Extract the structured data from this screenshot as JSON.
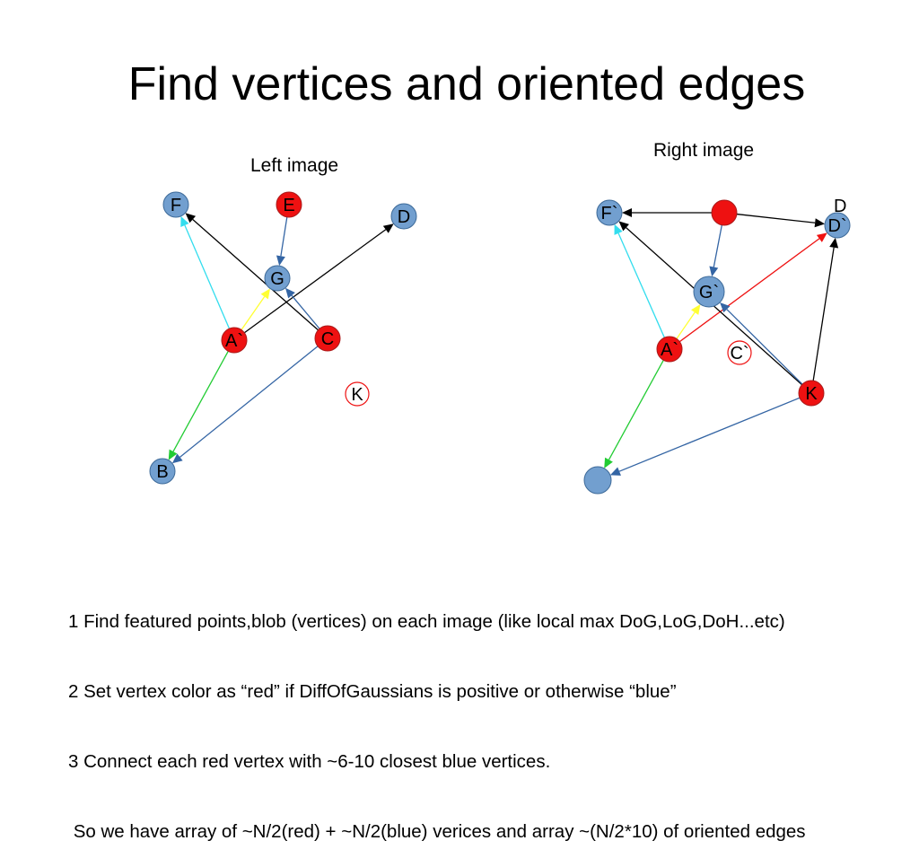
{
  "title": "Find vertices and oriented edges",
  "left_caption": "Left image",
  "right_caption": "Right image",
  "colors": {
    "red": "#ee1111",
    "blue": "#729fcf",
    "steel": "#3465a4",
    "cyan": "#33ddee",
    "yellow": "#ffff33",
    "green": "#22cc33",
    "black": "#000000"
  },
  "left_vertices": [
    {
      "id": "F",
      "label": "F",
      "color": "blue"
    },
    {
      "id": "E",
      "label": "E",
      "color": "red"
    },
    {
      "id": "D",
      "label": "D",
      "color": "blue"
    },
    {
      "id": "G",
      "label": "G",
      "color": "blue"
    },
    {
      "id": "A",
      "label": "A`",
      "color": "red"
    },
    {
      "id": "C",
      "label": "C",
      "color": "red"
    },
    {
      "id": "K",
      "label": "K",
      "color": "outline"
    },
    {
      "id": "B",
      "label": "B",
      "color": "blue"
    }
  ],
  "right_vertices": [
    {
      "id": "F",
      "label": "F`",
      "color": "blue"
    },
    {
      "id": "E",
      "label": "",
      "color": "red"
    },
    {
      "id": "D",
      "label": "D`",
      "color": "blue"
    },
    {
      "id": "G",
      "label": "G`",
      "color": "blue"
    },
    {
      "id": "A",
      "label": "A`",
      "color": "red"
    },
    {
      "id": "C",
      "label": "C`",
      "color": "outline"
    },
    {
      "id": "K",
      "label": "K",
      "color": "red"
    },
    {
      "id": "B",
      "label": "",
      "color": "blue"
    }
  ],
  "right_extra_label": "D",
  "left_edges": [
    {
      "from": "A",
      "to": "F",
      "color": "cyan"
    },
    {
      "from": "A",
      "to": "G",
      "color": "yellow"
    },
    {
      "from": "A",
      "to": "D",
      "color": "black"
    },
    {
      "from": "A",
      "to": "B",
      "color": "green"
    },
    {
      "from": "C",
      "to": "F",
      "color": "black"
    },
    {
      "from": "C",
      "to": "G",
      "color": "steel"
    },
    {
      "from": "C",
      "to": "B",
      "color": "steel"
    },
    {
      "from": "E",
      "to": "G",
      "color": "steel"
    }
  ],
  "right_edges": [
    {
      "from": "E",
      "to": "F",
      "color": "black"
    },
    {
      "from": "E",
      "to": "D",
      "color": "black"
    },
    {
      "from": "E",
      "to": "G",
      "color": "steel"
    },
    {
      "from": "A",
      "to": "F",
      "color": "cyan"
    },
    {
      "from": "A",
      "to": "G",
      "color": "yellow"
    },
    {
      "from": "A",
      "to": "D",
      "color": "red"
    },
    {
      "from": "A",
      "to": "B",
      "color": "green"
    },
    {
      "from": "K",
      "to": "F",
      "color": "black"
    },
    {
      "from": "K",
      "to": "G",
      "color": "steel"
    },
    {
      "from": "K",
      "to": "D",
      "color": "black"
    },
    {
      "from": "K",
      "to": "B",
      "color": "steel"
    }
  ],
  "notes": [
    "1 Find featured points,blob (vertices) on each image (like local max DoG,LoG,DoH...etc)",
    "2 Set vertex color as “red” if DiffOfGaussians is positive or otherwise “blue”",
    "3 Connect each red vertex with ~6-10 closest blue vertices.",
    " So we have array of ~N/2(red) + ~N/2(blue) verices and array ~(N/2*10) of oriented edges"
  ]
}
